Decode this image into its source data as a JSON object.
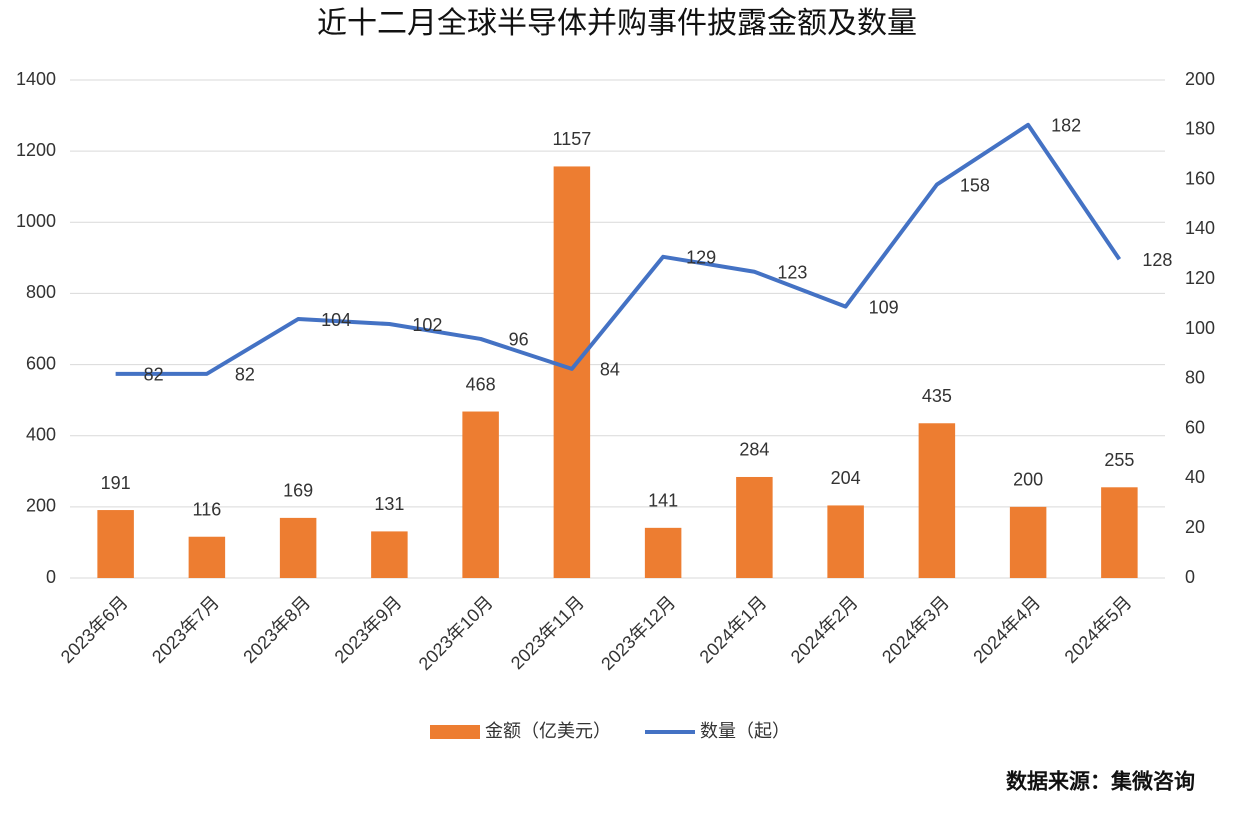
{
  "chart_data": {
    "type": "bar",
    "title": "近十二月全球半导体并购事件披露金额及数量",
    "source": "数据来源：集微咨询",
    "categories": [
      "2023年6月",
      "2023年7月",
      "2023年8月",
      "2023年9月",
      "2023年10月",
      "2023年11月",
      "2023年12月",
      "2024年1月",
      "2024年2月",
      "2024年3月",
      "2024年4月",
      "2024年5月"
    ],
    "series": [
      {
        "name": "金额（亿美元）",
        "color": "#ed7d31",
        "values": [
          191,
          116,
          169,
          131,
          468,
          1157,
          141,
          284,
          204,
          435,
          200,
          255
        ]
      },
      {
        "name": "数量（起）",
        "color": "#4472c4",
        "type": "line",
        "axis": "y2",
        "values": [
          82,
          82,
          104,
          102,
          96,
          84,
          129,
          123,
          109,
          158,
          182,
          128
        ]
      }
    ],
    "ylim": [
      0,
      1400
    ],
    "yticks": [
      0,
      200,
      400,
      600,
      800,
      1000,
      1200,
      1400
    ],
    "y2lim": [
      0,
      200
    ],
    "y2ticks": [
      0,
      20,
      40,
      60,
      80,
      100,
      120,
      140,
      160,
      180,
      200
    ],
    "grid": true,
    "legend": "bottom"
  }
}
